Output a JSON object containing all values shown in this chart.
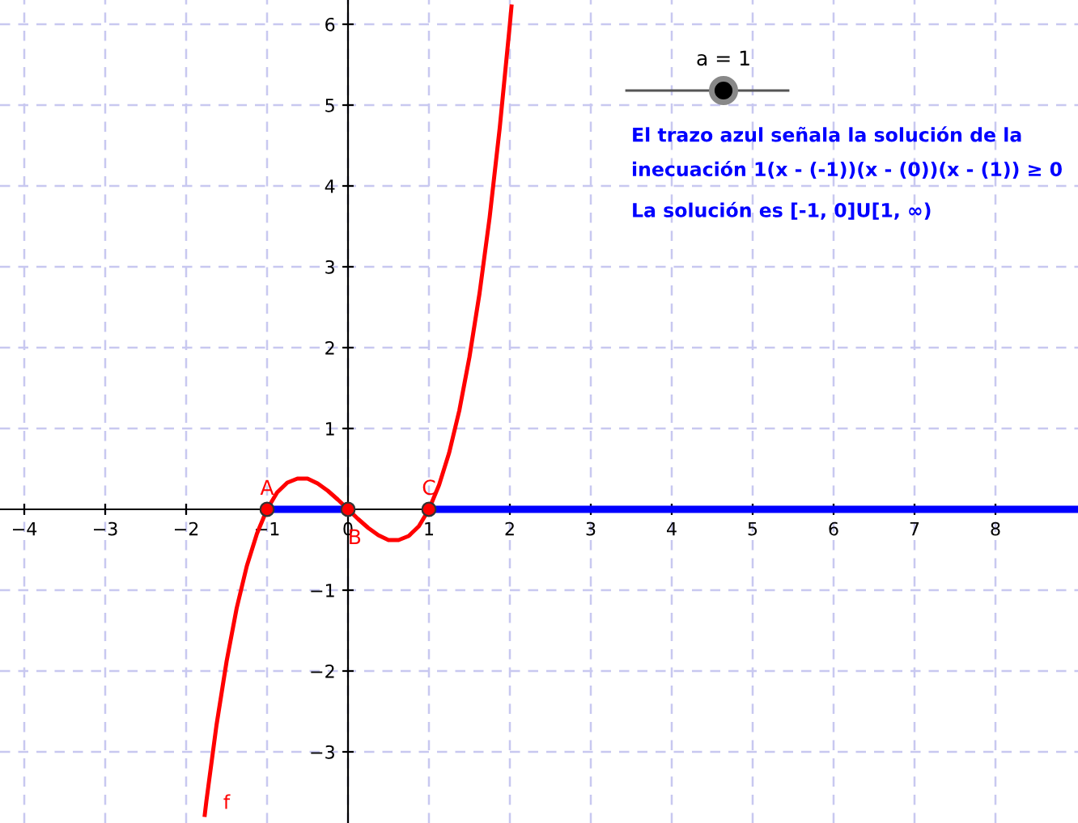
{
  "chart_data": {
    "type": "line",
    "xlim": [
      -4.3,
      9.02
    ],
    "ylim": [
      -3.88,
      6.3
    ],
    "xticks": [
      {
        "value": -4,
        "label": "−4"
      },
      {
        "value": -3,
        "label": "−3"
      },
      {
        "value": -2,
        "label": "−2"
      },
      {
        "value": -1,
        "label": "−1"
      },
      0,
      1,
      2,
      3,
      4,
      5,
      6,
      7,
      8
    ],
    "yticks": [
      {
        "value": -3,
        "label": "−3"
      },
      {
        "value": -2,
        "label": "−2"
      },
      {
        "value": -1,
        "label": "−1"
      },
      1,
      2,
      3,
      4,
      5,
      6
    ],
    "grid": true,
    "series": [
      {
        "color": "#ff0000",
        "x": [
          -1.77,
          -1.75,
          -1.625,
          -1.5,
          -1.375,
          -1.25,
          -1.125,
          -1,
          -0.875,
          -0.75,
          -0.625,
          -0.5,
          -0.375,
          -0.25,
          -0.125,
          0,
          0.125,
          0.25,
          0.375,
          0.5,
          0.625,
          0.75,
          0.875,
          1,
          1.125,
          1.25,
          1.375,
          1.5,
          1.625,
          1.75,
          1.875,
          2.0,
          2.02
        ],
        "values": [
          -3.78,
          -3.61,
          -2.67,
          -1.88,
          -1.22,
          -0.7,
          -0.3,
          0,
          0.21,
          0.33,
          0.38,
          0.38,
          0.32,
          0.23,
          0.12,
          0,
          -0.12,
          -0.23,
          -0.32,
          -0.38,
          -0.38,
          -0.33,
          -0.21,
          0,
          0.3,
          0.7,
          1.22,
          1.88,
          2.67,
          3.61,
          4.72,
          6.0,
          6.22
        ]
      },
      {
        "color": "#0000ff",
        "x": [
          -1,
          0,
          0.5,
          1,
          9.02
        ],
        "values": [
          0,
          0,
          null,
          0,
          0
        ]
      },
      {
        "type": "scatter",
        "color": "#ff0000",
        "x": [
          -1,
          0,
          1
        ],
        "values": [
          0,
          0,
          0
        ]
      }
    ],
    "annotations": [
      "a = 1",
      "El trazo azul señala la solución de la\ninecuación 1(x - (-1))(x - (0))(x - (1)) ≥ 0",
      "La solución es [-1, 0]U[1, ∞)",
      {
        "text": "A",
        "x": -1,
        "y": 0
      },
      {
        "text": "B",
        "x": 0,
        "y": 0
      },
      {
        "text": "C",
        "x": 1,
        "y": 0
      },
      "f"
    ]
  }
}
